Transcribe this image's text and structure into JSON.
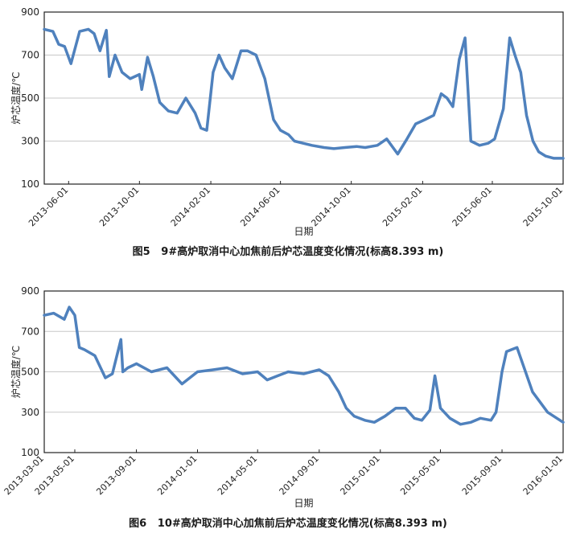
{
  "chart_data": [
    {
      "type": "line",
      "title": "图5　9#高炉取消中心加焦前后炉芯温度变化情况(标高8.393 m)",
      "caption_prefix": "图5",
      "caption_text": "9#高炉取消中心加焦前后炉芯温度变化情况(标高8.393 m)",
      "xlabel": "日期",
      "ylabel": "炉芯温度/℃",
      "ylim": [
        100,
        900
      ],
      "yticks": [
        100,
        300,
        500,
        700,
        900
      ],
      "grid": true,
      "line_color": "#4f81bd",
      "x_range": [
        "2013-04-20",
        "2015-10-01"
      ],
      "xtick_labels": [
        "2013-06-01",
        "2013-10-01",
        "2014-02-01",
        "2014-06-01",
        "2014-10-01",
        "2015-02-01",
        "2015-06-01",
        "2015-10-01"
      ],
      "series": [
        {
          "name": "炉芯温度",
          "x": [
            "2013-04-20",
            "2013-05-05",
            "2013-05-15",
            "2013-05-25",
            "2013-06-05",
            "2013-06-20",
            "2013-07-05",
            "2013-07-15",
            "2013-07-25",
            "2013-08-05",
            "2013-08-10",
            "2013-08-20",
            "2013-09-01",
            "2013-09-15",
            "2013-10-01",
            "2013-10-05",
            "2013-10-15",
            "2013-10-25",
            "2013-11-05",
            "2013-11-20",
            "2013-12-05",
            "2013-12-20",
            "2014-01-05",
            "2014-01-15",
            "2014-01-25",
            "2014-02-05",
            "2014-02-15",
            "2014-02-25",
            "2014-03-10",
            "2014-03-25",
            "2014-04-05",
            "2014-04-20",
            "2014-05-05",
            "2014-05-20",
            "2014-06-01",
            "2014-06-15",
            "2014-06-25",
            "2014-07-10",
            "2014-07-25",
            "2014-08-15",
            "2014-09-01",
            "2014-09-20",
            "2014-10-10",
            "2014-10-25",
            "2014-11-15",
            "2014-12-01",
            "2014-12-20",
            "2015-01-05",
            "2015-01-20",
            "2015-02-05",
            "2015-02-20",
            "2015-03-05",
            "2015-03-15",
            "2015-03-25",
            "2015-04-05",
            "2015-04-15",
            "2015-04-25",
            "2015-05-10",
            "2015-05-25",
            "2015-06-05",
            "2015-06-20",
            "2015-07-01",
            "2015-07-10",
            "2015-07-20",
            "2015-07-30",
            "2015-08-10",
            "2015-08-20",
            "2015-09-01",
            "2015-09-15",
            "2015-10-01"
          ],
          "values": [
            820,
            810,
            750,
            740,
            660,
            810,
            820,
            800,
            720,
            815,
            600,
            700,
            620,
            590,
            610,
            540,
            690,
            600,
            480,
            440,
            430,
            500,
            430,
            360,
            350,
            620,
            700,
            640,
            590,
            720,
            720,
            700,
            590,
            400,
            350,
            330,
            300,
            290,
            280,
            270,
            265,
            270,
            275,
            270,
            280,
            310,
            240,
            310,
            380,
            400,
            420,
            520,
            500,
            460,
            680,
            780,
            300,
            280,
            290,
            310,
            450,
            780,
            700,
            620,
            420,
            300,
            250,
            230,
            220,
            220
          ]
        }
      ]
    },
    {
      "type": "line",
      "title": "图6　10#高炉取消中心加焦前后炉芯温度变化情况(标高8.393 m)",
      "caption_prefix": "图6",
      "caption_text": "10#高炉取消中心加焦前后炉芯温度变化情况(标高8.393 m)",
      "xlabel": "日期",
      "ylabel": "炉芯温度/℃",
      "ylim": [
        100,
        900
      ],
      "yticks": [
        100,
        300,
        500,
        700,
        900
      ],
      "grid": true,
      "line_color": "#4f81bd",
      "x_range": [
        "2013-03-01",
        "2016-01-01"
      ],
      "xtick_labels": [
        "2013-03-01",
        "2013-05-01",
        "2013-09-01",
        "2014-01-01",
        "2014-05-01",
        "2014-09-01",
        "2015-01-01",
        "2015-05-01",
        "2015-09-01",
        "2016-01-01"
      ],
      "series": [
        {
          "name": "炉芯温度",
          "x": [
            "2013-03-01",
            "2013-03-20",
            "2013-04-10",
            "2013-04-20",
            "2013-05-01",
            "2013-05-10",
            "2013-05-20",
            "2013-06-10",
            "2013-07-01",
            "2013-07-15",
            "2013-08-01",
            "2013-08-05",
            "2013-08-15",
            "2013-09-01",
            "2013-10-01",
            "2013-11-01",
            "2013-12-01",
            "2014-01-01",
            "2014-02-01",
            "2014-03-01",
            "2014-04-01",
            "2014-05-01",
            "2014-05-20",
            "2014-06-10",
            "2014-07-01",
            "2014-08-01",
            "2014-09-01",
            "2014-09-20",
            "2014-10-10",
            "2014-10-25",
            "2014-11-10",
            "2014-12-01",
            "2014-12-20",
            "2015-01-10",
            "2015-02-01",
            "2015-02-20",
            "2015-03-10",
            "2015-03-25",
            "2015-04-10",
            "2015-04-20",
            "2015-05-01",
            "2015-05-20",
            "2015-06-10",
            "2015-07-01",
            "2015-07-20",
            "2015-08-10",
            "2015-08-20",
            "2015-09-01",
            "2015-09-10",
            "2015-09-20",
            "2015-10-01",
            "2015-11-01",
            "2015-12-01",
            "2016-01-01"
          ],
          "values": [
            780,
            790,
            760,
            820,
            780,
            620,
            610,
            580,
            470,
            490,
            660,
            500,
            520,
            540,
            500,
            520,
            440,
            500,
            510,
            520,
            490,
            500,
            460,
            480,
            500,
            490,
            510,
            480,
            400,
            320,
            280,
            260,
            250,
            280,
            320,
            320,
            270,
            260,
            310,
            480,
            320,
            270,
            240,
            250,
            270,
            260,
            300,
            500,
            600,
            610,
            620,
            400,
            300,
            250
          ]
        }
      ]
    }
  ]
}
